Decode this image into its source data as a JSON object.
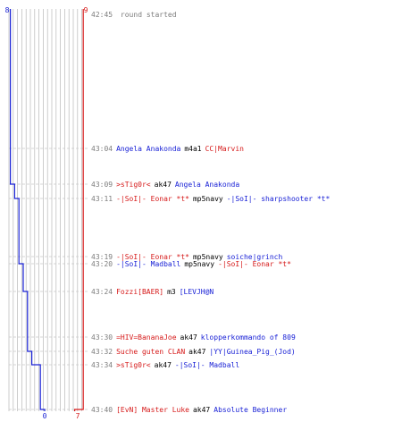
{
  "colors": {
    "blue_team": "#1a22d6",
    "red_team": "#d61a1a",
    "weapon_text": "#000000",
    "timestamp": "#7d7d7d",
    "grid": "#b8b8b8",
    "divider": "#6a6a6a",
    "guide": "#c8c8c8"
  },
  "scores": {
    "blue_start": "8",
    "red_start": "9",
    "blue_end": "0",
    "red_end": "7"
  },
  "timeline": {
    "blue_steps": [
      8,
      8,
      8,
      8,
      7,
      7,
      6,
      6,
      6,
      5,
      5,
      5,
      4,
      4,
      4,
      3,
      3,
      2,
      1,
      1,
      0
    ],
    "red_steps": [
      9,
      9,
      9,
      9,
      9,
      9,
      9,
      9,
      9,
      9,
      9,
      9,
      9,
      9,
      9,
      9,
      9,
      9,
      9,
      9,
      7
    ],
    "round_start": {
      "time": "42:45",
      "text": "round started"
    },
    "events": [
      {
        "time": "43:04",
        "killer": "Angela Anakonda",
        "killer_team": "blue",
        "weapon": "m4a1",
        "victim": "CC|Marvin",
        "victim_team": "red"
      },
      {
        "time": "43:09",
        "killer": ">sTig0r<",
        "killer_team": "red",
        "weapon": "ak47",
        "victim": "Angela Anakonda",
        "victim_team": "blue"
      },
      {
        "time": "43:11",
        "killer": "-|SoI|- Eonar *t*",
        "killer_team": "red",
        "weapon": "mp5navy",
        "victim": "-|SoI|- sharpshooter *t*",
        "victim_team": "blue"
      },
      {
        "time": "43:19",
        "killer": "-|SoI|- Eonar *t*",
        "killer_team": "red",
        "weapon": "mp5navy",
        "victim": "soiche|grinch",
        "victim_team": "blue"
      },
      {
        "time": "43:20",
        "killer": "-|SoI|- Madball",
        "killer_team": "blue",
        "weapon": "mp5navy",
        "victim": "-|SoI|- Eonar *t*",
        "victim_team": "red"
      },
      {
        "time": "43:24",
        "killer": "Fozzi[BAER]",
        "killer_team": "red",
        "weapon": "m3",
        "victim": "[LEVJH@N",
        "victim_team": "blue"
      },
      {
        "time": "43:30",
        "killer": "=HIV=BananaJoe",
        "killer_team": "red",
        "weapon": "ak47",
        "victim": "klopperkommando of 809",
        "victim_team": "blue"
      },
      {
        "time": "43:32",
        "killer": "Suche guten CLAN",
        "killer_team": "red",
        "weapon": "ak47",
        "victim": "|YY|Guinea_Pig_(Jod)",
        "victim_team": "blue"
      },
      {
        "time": "43:34",
        "killer": ">sTig0r<",
        "killer_team": "red",
        "weapon": "ak47",
        "victim": "-|SoI|- Madball",
        "victim_team": "blue"
      },
      {
        "time": "43:40",
        "killer": "[EvN] Master Luke",
        "killer_team": "red",
        "weapon": "ak47",
        "victim": "Absolute Beginner",
        "victim_team": "blue"
      }
    ]
  }
}
